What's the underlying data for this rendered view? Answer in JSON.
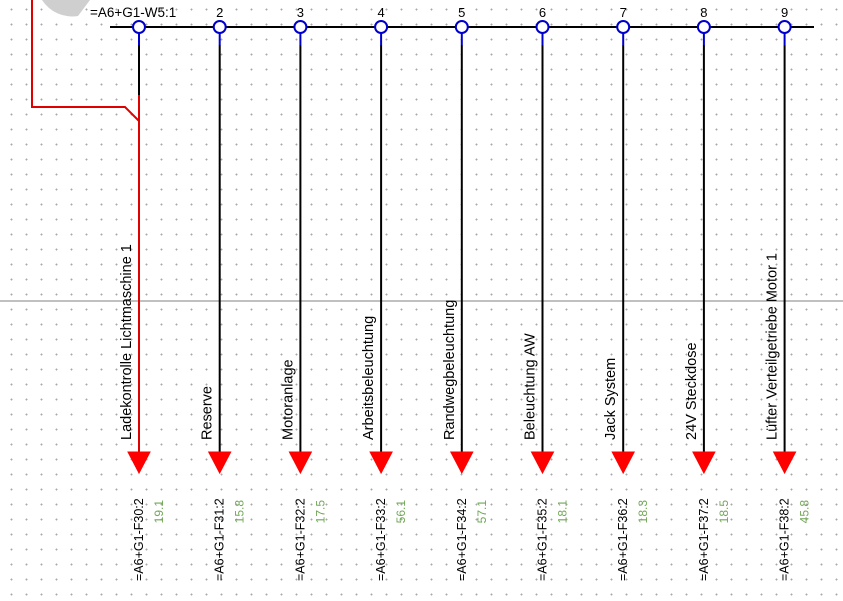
{
  "header": {
    "terminal_strip_label": "=A6+G1-W5:1"
  },
  "colors": {
    "wire": "#000000",
    "highlight_wire": "#e00000",
    "arrow": "#ff0000",
    "terminal_ring": "#0000cc",
    "value_text": "#70a855",
    "divider": "#808080",
    "logo_arc": "#cfcfcf"
  },
  "terminals": [
    {
      "number": "",
      "description": "Ladekontrolle Lichtmaschine 1",
      "target": "=A6+G1-F30:2",
      "value": "19.1",
      "highlighted": true
    },
    {
      "number": "2",
      "description": "Reserve",
      "target": "=A6+G1-F31:2",
      "value": "15.8",
      "highlighted": false
    },
    {
      "number": "3",
      "description": "Motoranlage",
      "target": "=A6+G1-F32:2",
      "value": "17.5",
      "highlighted": false
    },
    {
      "number": "4",
      "description": "Arbeitsbeleuchtung",
      "target": "=A6+G1-F33:2",
      "value": "56.1",
      "highlighted": false
    },
    {
      "number": "5",
      "description": "Randwegbeleuchtung",
      "target": "=A6+G1-F34:2",
      "value": "57.1",
      "highlighted": false
    },
    {
      "number": "6",
      "description": "Beleuchtung AW",
      "target": "=A6+G1-F35:2",
      "value": "18.1",
      "highlighted": false
    },
    {
      "number": "7",
      "description": "Jack System",
      "target": "=A6+G1-F36:2",
      "value": "18.3",
      "highlighted": false
    },
    {
      "number": "8",
      "description": "24V Steckdose",
      "target": "=A6+G1-F37:2",
      "value": "18.5",
      "highlighted": false
    },
    {
      "number": "9",
      "description": "Lüfter Verteilgetriebe Motor 1",
      "target": "=A6+G1-F38:2",
      "value": "45.8",
      "highlighted": false
    }
  ]
}
